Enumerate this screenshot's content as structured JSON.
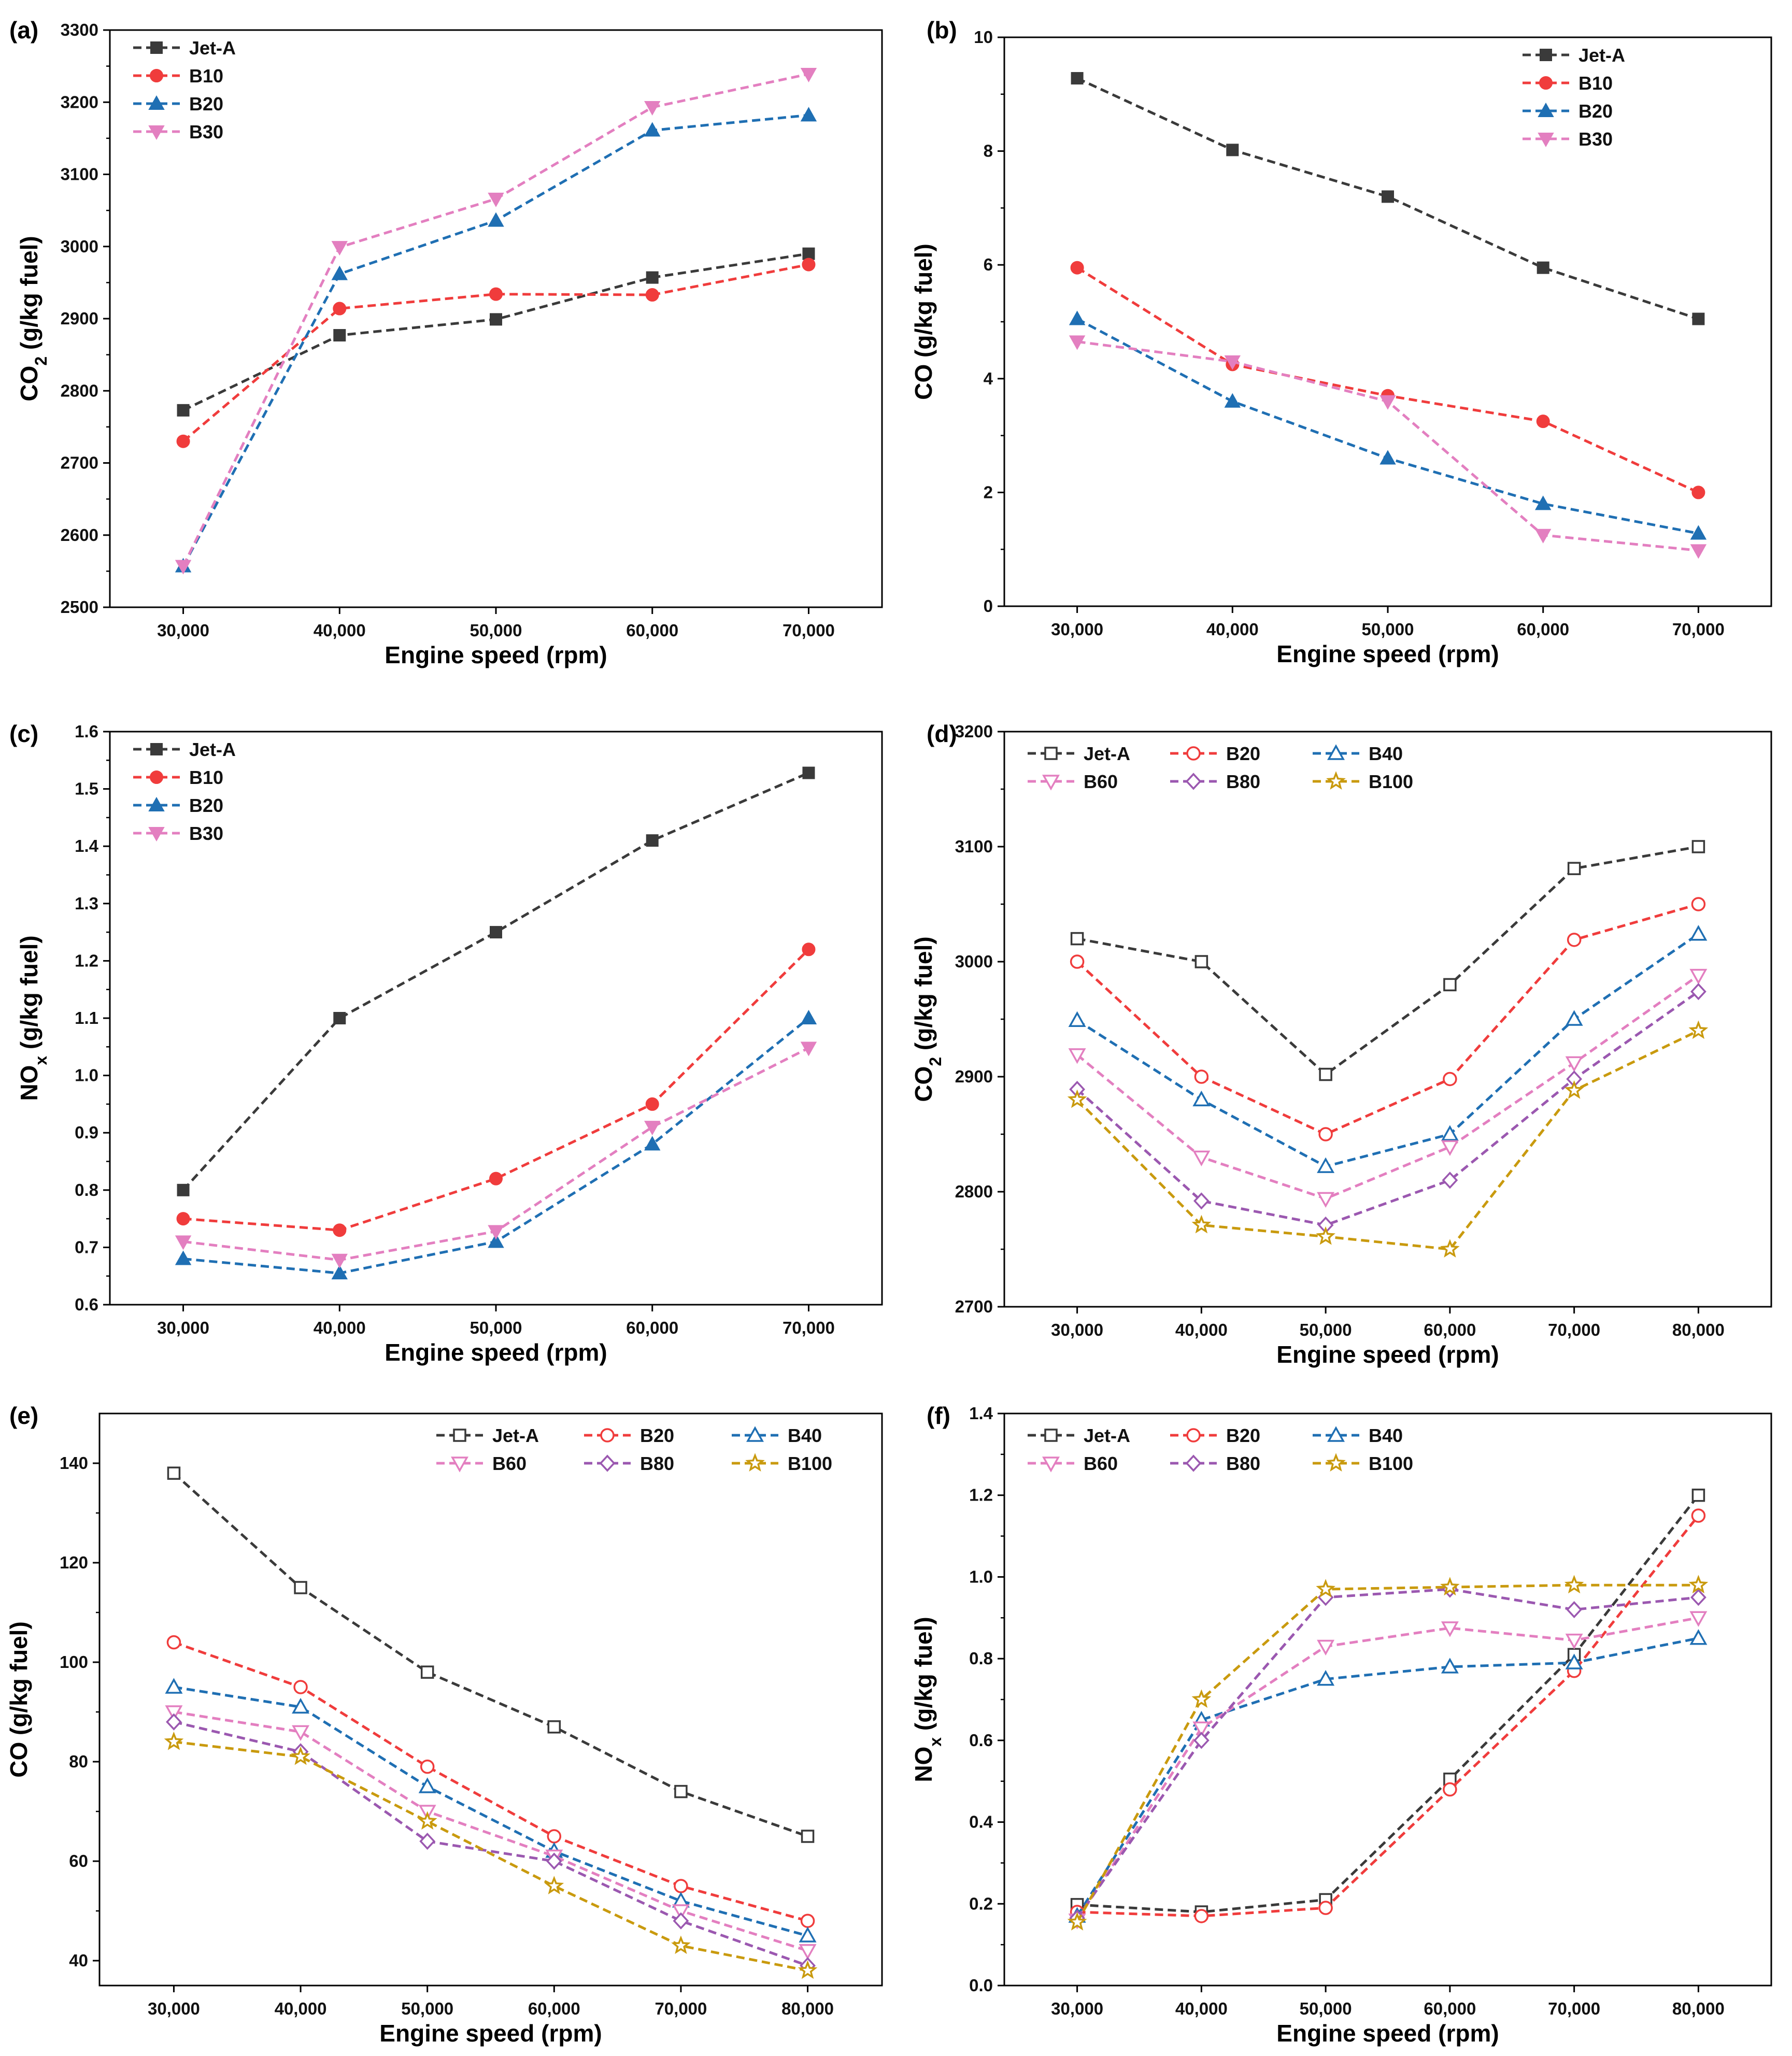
{
  "chart_data": [
    {
      "panel": "(a)",
      "type": "line",
      "xlabel": "Engine speed (rpm)",
      "ylabel": "CO2 (g/kg fuel)",
      "ylabel_parts": [
        "CO",
        "2",
        " (g/kg fuel)"
      ],
      "categories": [
        "30,000",
        "40,000",
        "50,000",
        "60,000",
        "70,000"
      ],
      "yticks": [
        "2500",
        "2600",
        "2700",
        "2800",
        "2900",
        "3000",
        "3100",
        "3200",
        "3300"
      ],
      "ylim": [
        2500,
        3300
      ],
      "legend_position": "top-left",
      "legend_cols": 1,
      "series": [
        {
          "name": "Jet-A",
          "color": "#3a3a3a",
          "marker": "square-filled",
          "values": [
            2773,
            2877,
            2899,
            2957,
            2990
          ]
        },
        {
          "name": "B10",
          "color": "#f03c3c",
          "marker": "circle-filled",
          "values": [
            2730,
            2914,
            2934,
            2933,
            2975
          ]
        },
        {
          "name": "B20",
          "color": "#1f6fb3",
          "marker": "triangle-up-filled",
          "values": [
            2557,
            2962,
            3036,
            3161,
            3182
          ]
        },
        {
          "name": "B30",
          "color": "#e37fc0",
          "marker": "triangle-down-filled",
          "values": [
            2557,
            2999,
            3066,
            3193,
            3239
          ]
        }
      ]
    },
    {
      "panel": "(b)",
      "type": "line",
      "xlabel": "Engine speed (rpm)",
      "ylabel": "CO (g/kg fuel)",
      "ylabel_parts": [
        "CO (g/kg fuel)"
      ],
      "categories": [
        "30,000",
        "40,000",
        "50,000",
        "60,000",
        "70,000"
      ],
      "yticks": [
        "0",
        "2",
        "4",
        "6",
        "8",
        "10"
      ],
      "ylim": [
        0,
        10
      ],
      "legend_position": "top-right",
      "legend_cols": 1,
      "series": [
        {
          "name": "Jet-A",
          "color": "#3a3a3a",
          "marker": "square-filled",
          "values": [
            9.28,
            8.02,
            7.2,
            5.95,
            5.05
          ]
        },
        {
          "name": "B10",
          "color": "#f03c3c",
          "marker": "circle-filled",
          "values": [
            5.95,
            4.25,
            3.7,
            3.25,
            2.0
          ]
        },
        {
          "name": "B20",
          "color": "#1f6fb3",
          "marker": "triangle-up-filled",
          "values": [
            5.05,
            3.6,
            2.6,
            1.8,
            1.28
          ]
        },
        {
          "name": "B30",
          "color": "#e37fc0",
          "marker": "triangle-down-filled",
          "values": [
            4.65,
            4.3,
            3.6,
            1.25,
            0.98
          ]
        }
      ]
    },
    {
      "panel": "(c)",
      "type": "line",
      "xlabel": "Engine speed (rpm)",
      "ylabel": "NOx (g/kg fuel)",
      "ylabel_parts": [
        "NO",
        "x",
        " (g/kg fuel)"
      ],
      "categories": [
        "30,000",
        "40,000",
        "50,000",
        "60,000",
        "70,000"
      ],
      "yticks": [
        "0.6",
        "0.7",
        "0.8",
        "0.9",
        "1.0",
        "1.1",
        "1.2",
        "1.3",
        "1.4",
        "1.5",
        "1.6"
      ],
      "ylim": [
        0.6,
        1.6
      ],
      "legend_position": "top-left",
      "legend_cols": 1,
      "series": [
        {
          "name": "Jet-A",
          "color": "#3a3a3a",
          "marker": "square-filled",
          "values": [
            0.8,
            1.1,
            1.25,
            1.41,
            1.528
          ]
        },
        {
          "name": "B10",
          "color": "#f03c3c",
          "marker": "circle-filled",
          "values": [
            0.75,
            0.73,
            0.82,
            0.95,
            1.22
          ]
        },
        {
          "name": "B20",
          "color": "#1f6fb3",
          "marker": "triangle-up-filled",
          "values": [
            0.68,
            0.655,
            0.71,
            0.88,
            1.1
          ]
        },
        {
          "name": "B30",
          "color": "#e37fc0",
          "marker": "triangle-down-filled",
          "values": [
            0.71,
            0.678,
            0.728,
            0.91,
            1.048
          ]
        }
      ]
    },
    {
      "panel": "(d)",
      "type": "line",
      "xlabel": "Engine speed (rpm)",
      "ylabel": "CO2 (g/kg fuel)",
      "ylabel_parts": [
        "CO",
        "2",
        " (g/kg fuel)"
      ],
      "categories": [
        "30,000",
        "40,000",
        "50,000",
        "60,000",
        "70,000",
        "80,000"
      ],
      "yticks": [
        "2700",
        "2800",
        "2900",
        "3000",
        "3100",
        "3200"
      ],
      "ylim": [
        2700,
        3200
      ],
      "legend_position": "top-left",
      "legend_cols": 3,
      "series": [
        {
          "name": "Jet-A",
          "color": "#3a3a3a",
          "marker": "square-open",
          "values": [
            3020,
            3000,
            2902,
            2980,
            3081,
            3100
          ]
        },
        {
          "name": "B20",
          "color": "#f03c3c",
          "marker": "circle-open",
          "values": [
            3000,
            2900,
            2850,
            2898,
            3019,
            3050
          ]
        },
        {
          "name": "B40",
          "color": "#1f6fb3",
          "marker": "triangle-up-open",
          "values": [
            2949,
            2880,
            2822,
            2850,
            2950,
            3024
          ]
        },
        {
          "name": "B60",
          "color": "#e37fc0",
          "marker": "triangle-down-open",
          "values": [
            2919,
            2830,
            2794,
            2839,
            2912,
            2988
          ]
        },
        {
          "name": "B80",
          "color": "#9b58b0",
          "marker": "diamond-open",
          "values": [
            2889,
            2792,
            2771,
            2810,
            2898,
            2974
          ]
        },
        {
          "name": "B100",
          "color": "#c99a0e",
          "marker": "star-open",
          "values": [
            2880,
            2771,
            2761,
            2750,
            2888,
            2940
          ]
        }
      ]
    },
    {
      "panel": "(e)",
      "type": "line",
      "xlabel": "Engine speed (rpm)",
      "ylabel": "CO (g/kg fuel)",
      "ylabel_parts": [
        "CO (g/kg fuel)"
      ],
      "categories": [
        "30,000",
        "40,000",
        "50,000",
        "60,000",
        "70,000",
        "80,000"
      ],
      "yticks": [
        "40",
        "60",
        "80",
        "100",
        "120",
        "140"
      ],
      "ylim": [
        35,
        150
      ],
      "legend_position": "top-right",
      "legend_cols": 3,
      "series": [
        {
          "name": "Jet-A",
          "color": "#3a3a3a",
          "marker": "square-open",
          "values": [
            138,
            115,
            98,
            87,
            74,
            65
          ]
        },
        {
          "name": "B20",
          "color": "#f03c3c",
          "marker": "circle-open",
          "values": [
            104,
            95,
            79,
            65,
            55,
            48
          ]
        },
        {
          "name": "B40",
          "color": "#1f6fb3",
          "marker": "triangle-up-open",
          "values": [
            95,
            91,
            75,
            62,
            52,
            45
          ]
        },
        {
          "name": "B60",
          "color": "#e37fc0",
          "marker": "triangle-down-open",
          "values": [
            90,
            86,
            70,
            61,
            50,
            42
          ]
        },
        {
          "name": "B80",
          "color": "#9b58b0",
          "marker": "diamond-open",
          "values": [
            88,
            82,
            64,
            60,
            48,
            39
          ]
        },
        {
          "name": "B100",
          "color": "#c99a0e",
          "marker": "star-open",
          "values": [
            84,
            81,
            68,
            55,
            43,
            38
          ]
        }
      ]
    },
    {
      "panel": "(f)",
      "type": "line",
      "xlabel": "Engine speed (rpm)",
      "ylabel": "NOx (g/kg fuel)",
      "ylabel_parts": [
        "NO",
        "x",
        " (g/kg fuel)"
      ],
      "categories": [
        "30,000",
        "40,000",
        "50,000",
        "60,000",
        "70,000",
        "80,000"
      ],
      "yticks": [
        "0.0",
        "0.2",
        "0.4",
        "0.6",
        "0.8",
        "1.0",
        "1.2",
        "1.4"
      ],
      "ylim": [
        0.0,
        1.4
      ],
      "legend_position": "top-left",
      "legend_cols": 3,
      "series": [
        {
          "name": "Jet-A",
          "color": "#3a3a3a",
          "marker": "square-open",
          "values": [
            0.198,
            0.18,
            0.21,
            0.505,
            0.81,
            1.2
          ]
        },
        {
          "name": "B20",
          "color": "#f03c3c",
          "marker": "circle-open",
          "values": [
            0.18,
            0.17,
            0.19,
            0.48,
            0.77,
            1.15
          ]
        },
        {
          "name": "B40",
          "color": "#1f6fb3",
          "marker": "triangle-up-open",
          "values": [
            0.17,
            0.65,
            0.75,
            0.78,
            0.79,
            0.85
          ]
        },
        {
          "name": "B60",
          "color": "#e37fc0",
          "marker": "triangle-down-open",
          "values": [
            0.16,
            0.63,
            0.83,
            0.875,
            0.845,
            0.9
          ]
        },
        {
          "name": "B80",
          "color": "#9b58b0",
          "marker": "diamond-open",
          "values": [
            0.165,
            0.6,
            0.95,
            0.97,
            0.92,
            0.95
          ]
        },
        {
          "name": "B100",
          "color": "#c99a0e",
          "marker": "star-open",
          "values": [
            0.155,
            0.7,
            0.97,
            0.975,
            0.98,
            0.98
          ]
        }
      ]
    }
  ]
}
